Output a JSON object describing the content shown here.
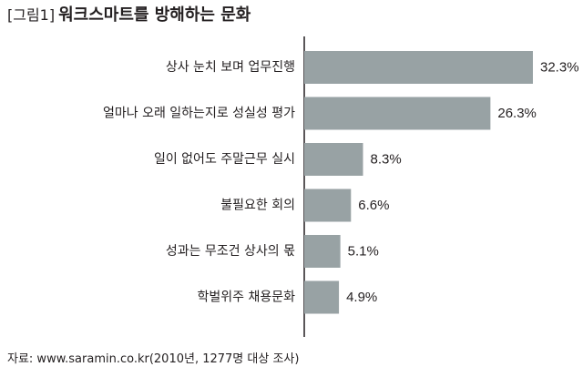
{
  "header": {
    "figure_tag": "[그림1]",
    "title": "워크스마트를 방해하는 문화"
  },
  "source": "자료: www.saramin.co.kr(2010년, 1277명 대상 조사)",
  "colors": {
    "bar": "#98a2a4",
    "axis": "#231f20",
    "text": "#231f20"
  },
  "chart_data": {
    "type": "bar",
    "orientation": "horizontal",
    "title": "워크스마트를 방해하는 문화",
    "xlabel": "",
    "ylabel": "",
    "categories": [
      "상사 눈치 보며 업무진행",
      "얼마나 오래 일하는지로 성실성 평가",
      "일이 없어도 주말근무 실시",
      "불필요한 회의",
      "성과는 무조건 상사의 몫",
      "학벌위주 채용문화"
    ],
    "values": [
      32.3,
      26.3,
      8.3,
      6.6,
      5.1,
      4.9
    ],
    "value_labels": [
      "32.3%",
      "26.3%",
      "8.3%",
      "6.6%",
      "5.1%",
      "4.9%"
    ],
    "unit": "%",
    "xlim": [
      0,
      32.3
    ],
    "grid": false,
    "legend": "none"
  }
}
